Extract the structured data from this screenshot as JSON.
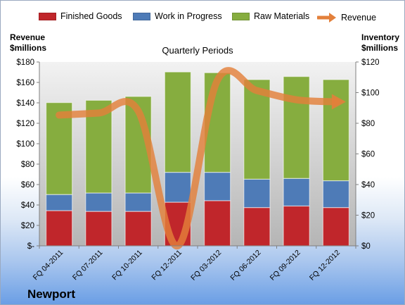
{
  "legend": {
    "finished": "Finished Goods",
    "wip": "Work in Progress",
    "raw": "Raw Materials",
    "revenue": "Revenue"
  },
  "axes": {
    "left_title_line1": "Revenue",
    "left_title_line2": "$millions",
    "right_title_line1": "Inventory",
    "right_title_line2": "$millions"
  },
  "company": "Newport",
  "colors": {
    "finished": "#c0262b",
    "wip": "#4e7bb7",
    "raw": "#86ad3f",
    "revenue": "#e3803b",
    "plot_background_top": "#f2f2f2",
    "plot_background_bottom": "#b5b5b5"
  },
  "chart_data": {
    "type": "bar",
    "stacked": true,
    "title": "Quarterly Periods",
    "categories": [
      "FQ 04-2011",
      "FQ 07-2011",
      "FQ 10-2011",
      "FQ 12-2011",
      "FQ 03-2012",
      "FQ 06-2012",
      "FQ 09-2012",
      "FQ 12-2012"
    ],
    "series": [
      {
        "name": "Finished Goods",
        "axis": "right",
        "values": [
          23,
          22.5,
          22.5,
          28.5,
          29.5,
          25,
          26,
          25
        ]
      },
      {
        "name": "Work in Progress",
        "axis": "right",
        "values": [
          10.5,
          12,
          12,
          19.5,
          18.5,
          18.5,
          18,
          17.5
        ]
      },
      {
        "name": "Raw Materials",
        "axis": "right",
        "values": [
          60,
          60.5,
          63,
          65.5,
          65,
          65,
          66.5,
          66
        ]
      }
    ],
    "line_series": [
      {
        "name": "Revenue",
        "axis": "left",
        "values": [
          128,
          130,
          132,
          0,
          162,
          152,
          143,
          141
        ]
      }
    ],
    "y_left": {
      "label": "Revenue $millions",
      "ylim": [
        0,
        180
      ],
      "ticks": [
        0,
        20,
        40,
        60,
        80,
        100,
        120,
        140,
        160,
        180
      ],
      "tick_labels": [
        "$-",
        "$20",
        "$40",
        "$60",
        "$80",
        "$100",
        "$120",
        "$140",
        "$160",
        "$180"
      ]
    },
    "y_right": {
      "label": "Inventory $millions",
      "ylim": [
        0,
        120
      ],
      "ticks": [
        0,
        20,
        40,
        60,
        80,
        100,
        120
      ],
      "tick_labels": [
        "$0",
        "$20",
        "$40",
        "$60",
        "$80",
        "$100",
        "$120"
      ]
    },
    "grid": false,
    "legend_position": "top"
  }
}
